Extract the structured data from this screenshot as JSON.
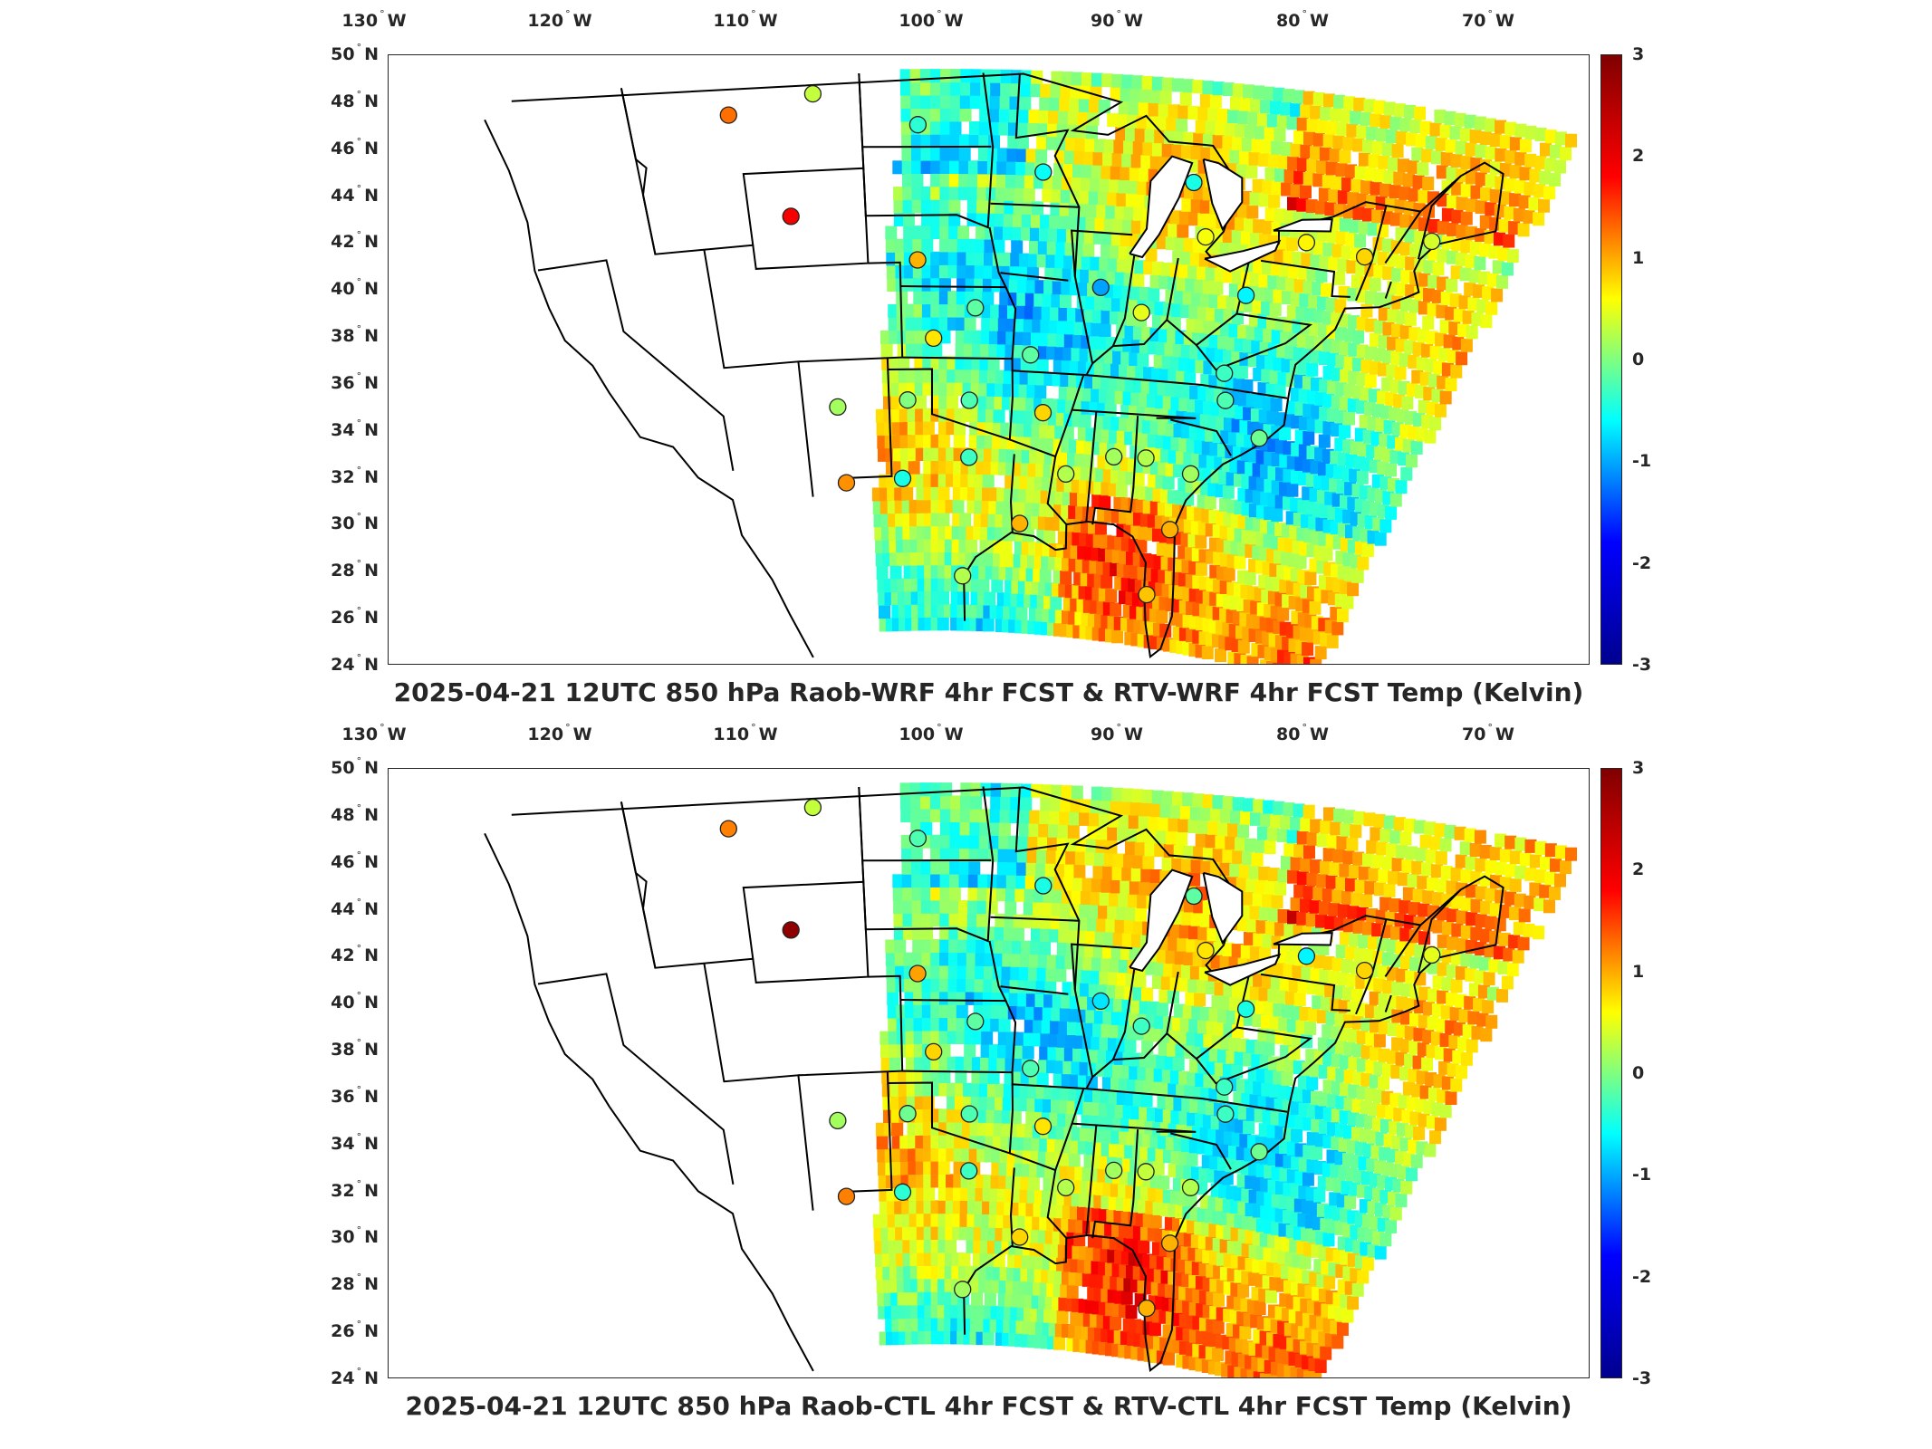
{
  "longitude_ticks": [
    {
      "lon": -130,
      "value": "130",
      "hemisphere": "W"
    },
    {
      "lon": -120,
      "value": "120",
      "hemisphere": "W"
    },
    {
      "lon": -110,
      "value": "110",
      "hemisphere": "W"
    },
    {
      "lon": -100,
      "value": "100",
      "hemisphere": "W"
    },
    {
      "lon": -90,
      "value": "90",
      "hemisphere": "W"
    },
    {
      "lon": -80,
      "value": "80",
      "hemisphere": "W"
    },
    {
      "lon": -70,
      "value": "70",
      "hemisphere": "W"
    }
  ],
  "latitude_ticks": [
    {
      "lat": 50,
      "value": "50",
      "hemisphere": "N"
    },
    {
      "lat": 48,
      "value": "48",
      "hemisphere": "N"
    },
    {
      "lat": 46,
      "value": "46",
      "hemisphere": "N"
    },
    {
      "lat": 44,
      "value": "44",
      "hemisphere": "N"
    },
    {
      "lat": 42,
      "value": "42",
      "hemisphere": "N"
    },
    {
      "lat": 40,
      "value": "40",
      "hemisphere": "N"
    },
    {
      "lat": 38,
      "value": "38",
      "hemisphere": "N"
    },
    {
      "lat": 36,
      "value": "36",
      "hemisphere": "N"
    },
    {
      "lat": 34,
      "value": "34",
      "hemisphere": "N"
    },
    {
      "lat": 32,
      "value": "32",
      "hemisphere": "N"
    },
    {
      "lat": 30,
      "value": "30",
      "hemisphere": "N"
    },
    {
      "lat": 28,
      "value": "28",
      "hemisphere": "N"
    },
    {
      "lat": 26,
      "value": "26",
      "hemisphere": "N"
    },
    {
      "lat": 24,
      "value": "24",
      "hemisphere": "N"
    }
  ],
  "colorbar": {
    "min": -3,
    "max": 3,
    "ticks": [
      "3",
      "2",
      "1",
      "0",
      "-1",
      "-2",
      "-3"
    ],
    "colormap": "jet",
    "colors": [
      "#00008f",
      "#0000ff",
      "#00ffff",
      "#ffff00",
      "#ff0000",
      "#800000"
    ]
  },
  "panels": [
    {
      "title": "2025-04-21 12UTC 850 hPa Raob-WRF 4hr FCST & RTV-WRF 4hr FCST Temp (Kelvin)",
      "stations": [
        {
          "lon": -111.4,
          "lat": 47.5,
          "value": 1.6
        },
        {
          "lon": -106.6,
          "lat": 48.2,
          "value": 0.4
        },
        {
          "lon": -108.5,
          "lat": 43.1,
          "value": 2.3
        },
        {
          "lon": -100.8,
          "lat": 46.8,
          "value": -0.5
        },
        {
          "lon": -93.5,
          "lat": 44.9,
          "value": -0.7
        },
        {
          "lon": -84.7,
          "lat": 44.9,
          "value": -0.6
        },
        {
          "lon": -100.9,
          "lat": 41.1,
          "value": 1.2
        },
        {
          "lon": -97.2,
          "lat": 39.1,
          "value": -0.2
        },
        {
          "lon": -99.9,
          "lat": 37.8,
          "value": 0.9
        },
        {
          "lon": -93.4,
          "lat": 37.2,
          "value": -0.2
        },
        {
          "lon": -89.3,
          "lat": 40.2,
          "value": -1.3
        },
        {
          "lon": -86.5,
          "lat": 39.3,
          "value": 0.6
        },
        {
          "lon": -83.4,
          "lat": 42.7,
          "value": 0.7
        },
        {
          "lon": -80.2,
          "lat": 40.5,
          "value": -0.8
        },
        {
          "lon": -77.4,
          "lat": 43.0,
          "value": 0.8
        },
        {
          "lon": -73.8,
          "lat": 42.8,
          "value": 1.0
        },
        {
          "lon": -70.3,
          "lat": 43.9,
          "value": 0.5
        },
        {
          "lon": -80.4,
          "lat": 37.2,
          "value": -0.4
        },
        {
          "lon": -79.9,
          "lat": 36.1,
          "value": -0.3
        },
        {
          "lon": -77.0,
          "lat": 34.8,
          "value": -0.1
        },
        {
          "lon": -81.1,
          "lat": 32.9,
          "value": 0.2
        },
        {
          "lon": -84.5,
          "lat": 33.3,
          "value": 0.3
        },
        {
          "lon": -86.8,
          "lat": 33.2,
          "value": 0.2
        },
        {
          "lon": -90.1,
          "lat": 32.3,
          "value": 0.3
        },
        {
          "lon": -92.2,
          "lat": 34.8,
          "value": 1.0
        },
        {
          "lon": -97.4,
          "lat": 35.2,
          "value": -0.3
        },
        {
          "lon": -101.7,
          "lat": 35.2,
          "value": 0.0
        },
        {
          "lon": -106.6,
          "lat": 35.0,
          "value": 0.2
        },
        {
          "lon": -97.3,
          "lat": 32.8,
          "value": -0.4
        },
        {
          "lon": -102.2,
          "lat": 31.9,
          "value": -0.6
        },
        {
          "lon": -106.4,
          "lat": 31.8,
          "value": 1.4
        },
        {
          "lon": -93.2,
          "lat": 30.1,
          "value": 1.2
        },
        {
          "lon": -97.5,
          "lat": 27.8,
          "value": 0.3
        },
        {
          "lon": -81.7,
          "lat": 30.5,
          "value": 1.2
        },
        {
          "lon": -82.4,
          "lat": 27.7,
          "value": 1.1
        }
      ]
    },
    {
      "title": "2025-04-21 12UTC 850 hPa Raob-CTL 4hr FCST & RTV-CTL 4hr FCST Temp (Kelvin)",
      "stations": [
        {
          "lon": -111.4,
          "lat": 47.5,
          "value": 1.5
        },
        {
          "lon": -106.6,
          "lat": 48.2,
          "value": 0.4
        },
        {
          "lon": -108.5,
          "lat": 43.1,
          "value": 2.9
        },
        {
          "lon": -100.8,
          "lat": 46.8,
          "value": -0.3
        },
        {
          "lon": -93.5,
          "lat": 44.9,
          "value": -0.6
        },
        {
          "lon": -84.7,
          "lat": 44.9,
          "value": -0.2
        },
        {
          "lon": -100.9,
          "lat": 41.1,
          "value": 1.3
        },
        {
          "lon": -97.2,
          "lat": 39.1,
          "value": -0.2
        },
        {
          "lon": -99.9,
          "lat": 37.8,
          "value": 1.0
        },
        {
          "lon": -93.4,
          "lat": 37.2,
          "value": -0.3
        },
        {
          "lon": -89.3,
          "lat": 40.2,
          "value": -0.9
        },
        {
          "lon": -86.5,
          "lat": 39.3,
          "value": -0.4
        },
        {
          "lon": -83.4,
          "lat": 42.7,
          "value": 0.9
        },
        {
          "lon": -80.2,
          "lat": 40.5,
          "value": -0.6
        },
        {
          "lon": -77.4,
          "lat": 43.0,
          "value": -0.8
        },
        {
          "lon": -73.8,
          "lat": 42.8,
          "value": 1.0
        },
        {
          "lon": -70.3,
          "lat": 43.9,
          "value": 0.6
        },
        {
          "lon": -80.4,
          "lat": 37.2,
          "value": -0.4
        },
        {
          "lon": -79.9,
          "lat": 36.1,
          "value": -0.4
        },
        {
          "lon": -77.0,
          "lat": 34.8,
          "value": -0.1
        },
        {
          "lon": -81.1,
          "lat": 32.9,
          "value": 0.3
        },
        {
          "lon": -84.5,
          "lat": 33.3,
          "value": 0.4
        },
        {
          "lon": -86.8,
          "lat": 33.2,
          "value": 0.2
        },
        {
          "lon": -90.1,
          "lat": 32.3,
          "value": 0.3
        },
        {
          "lon": -92.2,
          "lat": 34.8,
          "value": 0.9
        },
        {
          "lon": -97.4,
          "lat": 35.2,
          "value": -0.3
        },
        {
          "lon": -101.7,
          "lat": 35.2,
          "value": -0.1
        },
        {
          "lon": -106.6,
          "lat": 35.0,
          "value": 0.2
        },
        {
          "lon": -97.3,
          "lat": 32.8,
          "value": -0.4
        },
        {
          "lon": -102.2,
          "lat": 31.9,
          "value": -0.5
        },
        {
          "lon": -106.4,
          "lat": 31.8,
          "value": 1.5
        },
        {
          "lon": -93.2,
          "lat": 30.1,
          "value": 1.0
        },
        {
          "lon": -97.5,
          "lat": 27.8,
          "value": 0.2
        },
        {
          "lon": -81.7,
          "lat": 30.5,
          "value": 1.2
        },
        {
          "lon": -82.4,
          "lat": 27.7,
          "value": 1.2
        }
      ]
    }
  ]
}
